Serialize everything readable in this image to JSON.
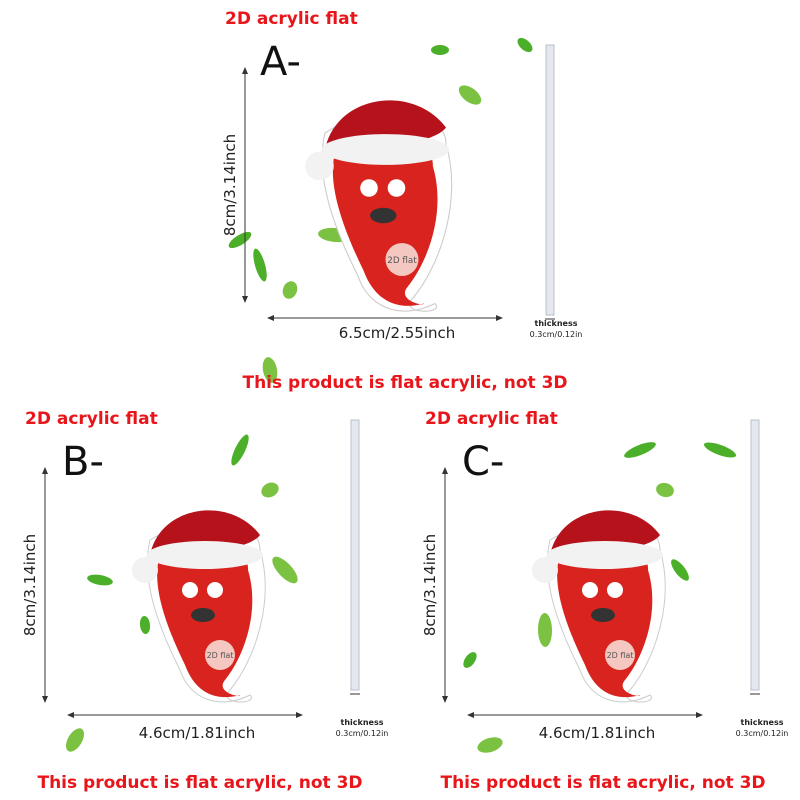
{
  "panels": [
    {
      "heading": "2D acrylic flat",
      "label": "A-",
      "height": "8cm/3.14inch",
      "width": "6.5cm/2.55inch",
      "thickness_title": "thickness",
      "thickness": "0.3cm/0.12in",
      "badge": "2D flat",
      "note": "This product is flat acrylic, not 3D"
    },
    {
      "heading": "2D acrylic flat",
      "label": "B-",
      "height": "8cm/3.14inch",
      "width": "4.6cm/1.81inch",
      "thickness_title": "thickness",
      "thickness": "0.3cm/0.12in",
      "badge": "2D flat",
      "note": "This product is flat acrylic, not 3D"
    },
    {
      "heading": "2D acrylic flat",
      "label": "C-",
      "height": "8cm/3.14inch",
      "width": "4.6cm/1.81inch",
      "thickness_title": "thickness",
      "thickness": "0.3cm/0.12in",
      "badge": "2D flat",
      "note": "This product is flat acrylic, not 3D"
    }
  ]
}
